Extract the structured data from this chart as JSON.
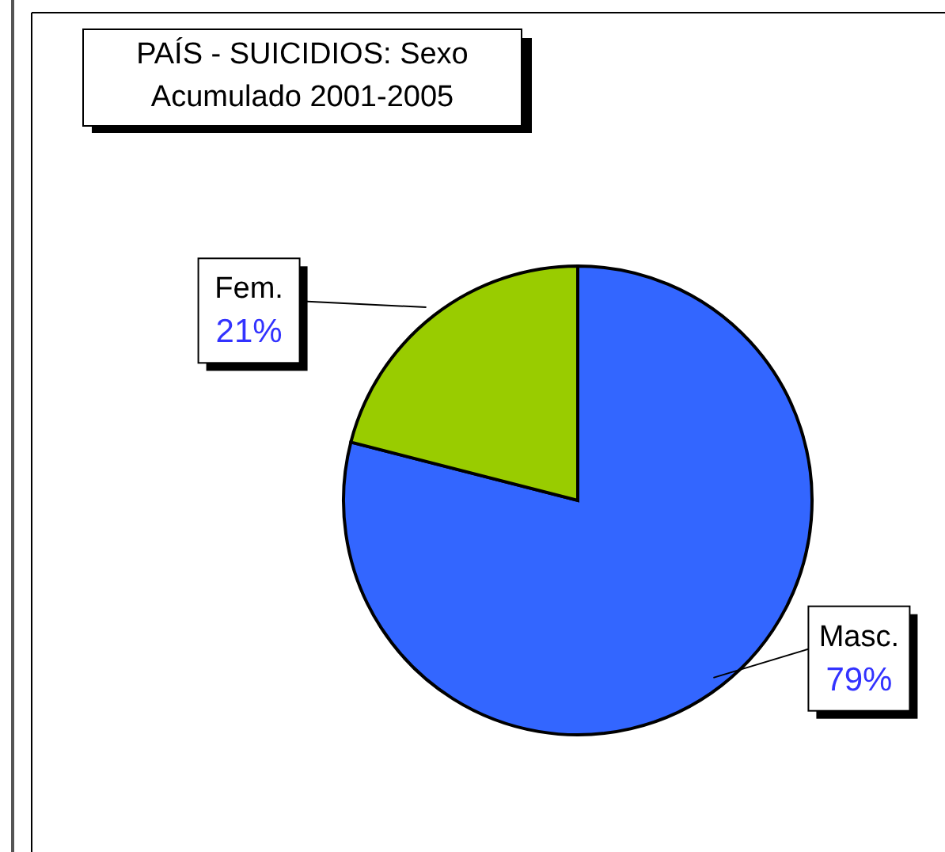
{
  "chart_data": {
    "type": "pie",
    "title": "PAÍS  - SUICIDIOS: Sexo",
    "subtitle": "Acumulado 2001-2005",
    "categories": [
      "Masc.",
      "Fem."
    ],
    "values": [
      79,
      21
    ],
    "value_labels": [
      "79%",
      "21%"
    ],
    "colors": [
      "#3366ff",
      "#99cc00"
    ]
  }
}
